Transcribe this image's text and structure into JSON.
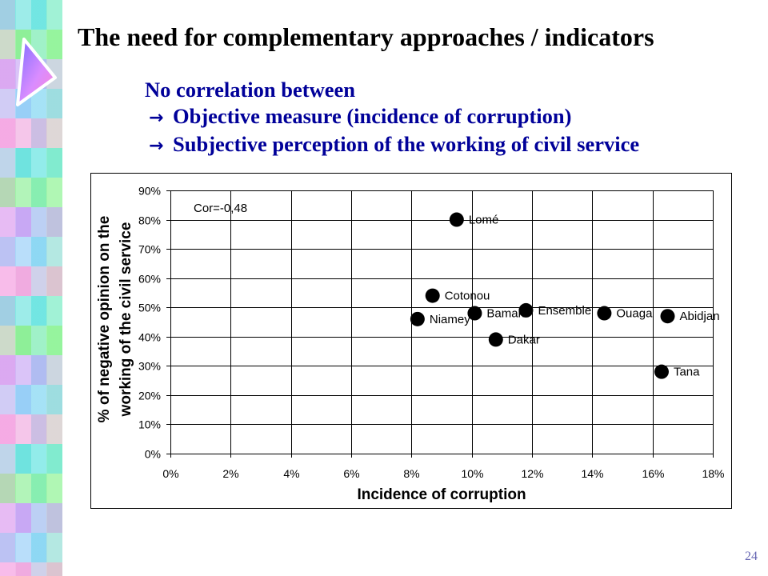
{
  "slide": {
    "title": "The need for complementary approaches / indicators",
    "intro": "No correlation between",
    "bullets": [
      {
        "arrow": "→",
        "text": "Objective measure (incidence of corruption)"
      },
      {
        "arrow": "→",
        "text": "Subjective perception of the working of civil service"
      }
    ],
    "page_number": "24"
  },
  "colors": {
    "title": "#000000",
    "subtitle": "#000099",
    "page_number": "#6666b3",
    "marker": "#000000",
    "gridline": "#000000"
  },
  "chart_data": {
    "type": "scatter",
    "xlabel": "Incidence of corruption",
    "ylabel": "% of negative opinion on the working of the civil service",
    "xlim": [
      0,
      18
    ],
    "ylim": [
      0,
      90
    ],
    "xticks": [
      "0%",
      "2%",
      "4%",
      "6%",
      "8%",
      "10%",
      "12%",
      "14%",
      "16%",
      "18%"
    ],
    "yticks": [
      "0%",
      "10%",
      "20%",
      "30%",
      "40%",
      "50%",
      "60%",
      "70%",
      "80%",
      "90%"
    ],
    "grid": true,
    "annotation": "Cor=-0,48",
    "points": [
      {
        "label": "Lomé",
        "x": 9.5,
        "y": 80
      },
      {
        "label": "Cotonou",
        "x": 8.7,
        "y": 54
      },
      {
        "label": "Niamey",
        "x": 8.2,
        "y": 46
      },
      {
        "label": "Bamako",
        "x": 10.1,
        "y": 48
      },
      {
        "label": "Ensemble",
        "x": 11.8,
        "y": 49
      },
      {
        "label": "Dakar",
        "x": 10.8,
        "y": 39
      },
      {
        "label": "Ouaga",
        "x": 14.4,
        "y": 48
      },
      {
        "label": "Abidjan",
        "x": 16.5,
        "y": 47
      },
      {
        "label": "Tana",
        "x": 16.3,
        "y": 28
      }
    ]
  }
}
